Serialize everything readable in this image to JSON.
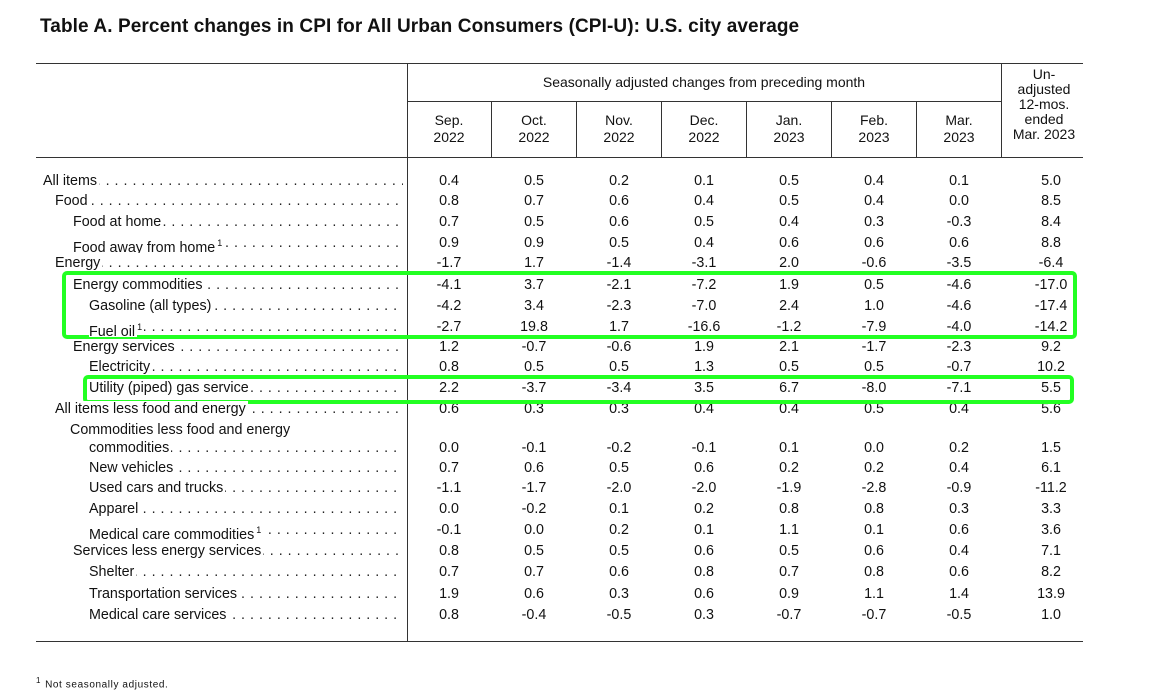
{
  "title": "Table A. Percent changes in CPI for All Urban Consumers (CPI-U): U.S. city average",
  "header": {
    "group_label": "Seasonally adjusted changes from preceding month",
    "unadjusted_label": [
      "Un-",
      "adjusted",
      "12-mos.",
      "ended",
      "Mar. 2023"
    ],
    "months": [
      {
        "l1": "Sep.",
        "l2": "2022"
      },
      {
        "l1": "Oct.",
        "l2": "2022"
      },
      {
        "l1": "Nov.",
        "l2": "2022"
      },
      {
        "l1": "Dec.",
        "l2": "2022"
      },
      {
        "l1": "Jan.",
        "l2": "2023"
      },
      {
        "l1": "Feb.",
        "l2": "2023"
      },
      {
        "l1": "Mar.",
        "l2": "2023"
      }
    ]
  },
  "rows": [
    {
      "label": "All items",
      "indent": 0,
      "values": [
        "0.4",
        "0.5",
        "0.2",
        "0.1",
        "0.5",
        "0.4",
        "0.1",
        "5.0"
      ]
    },
    {
      "label": "Food",
      "indent": 1,
      "values": [
        "0.8",
        "0.7",
        "0.6",
        "0.4",
        "0.5",
        "0.4",
        "0.0",
        "8.5"
      ]
    },
    {
      "label": "Food at home",
      "indent": 2,
      "values": [
        "0.7",
        "0.5",
        "0.6",
        "0.5",
        "0.4",
        "0.3",
        "-0.3",
        "8.4"
      ]
    },
    {
      "label": "Food away from home",
      "sup": "1",
      "indent": 2,
      "values": [
        "0.9",
        "0.9",
        "0.5",
        "0.4",
        "0.6",
        "0.6",
        "0.6",
        "8.8"
      ]
    },
    {
      "label": "Energy",
      "indent": 1,
      "values": [
        "-1.7",
        "1.7",
        "-1.4",
        "-3.1",
        "2.0",
        "-0.6",
        "-3.5",
        "-6.4"
      ]
    },
    {
      "label": "Energy commodities",
      "indent": 2,
      "values": [
        "-4.1",
        "3.7",
        "-2.1",
        "-7.2",
        "1.9",
        "0.5",
        "-4.6",
        "-17.0"
      ]
    },
    {
      "label": "Gasoline (all types)",
      "indent": 3,
      "values": [
        "-4.2",
        "3.4",
        "-2.3",
        "-7.0",
        "2.4",
        "1.0",
        "-4.6",
        "-17.4"
      ]
    },
    {
      "label": "Fuel oil",
      "sup": "1",
      "indent": 3,
      "values": [
        "-2.7",
        "19.8",
        "1.7",
        "-16.6",
        "-1.2",
        "-7.9",
        "-4.0",
        "-14.2"
      ]
    },
    {
      "label": "Energy services",
      "indent": 2,
      "values": [
        "1.2",
        "-0.7",
        "-0.6",
        "1.9",
        "2.1",
        "-1.7",
        "-2.3",
        "9.2"
      ]
    },
    {
      "label": "Electricity",
      "indent": 3,
      "values": [
        "0.8",
        "0.5",
        "0.5",
        "1.3",
        "0.5",
        "0.5",
        "-0.7",
        "10.2"
      ]
    },
    {
      "label": "Utility (piped) gas service",
      "indent": 3,
      "values": [
        "2.2",
        "-3.7",
        "-3.4",
        "3.5",
        "6.7",
        "-8.0",
        "-7.1",
        "5.5"
      ]
    },
    {
      "label": "All items less food and energy",
      "indent": 1,
      "values": [
        "0.6",
        "0.3",
        "0.3",
        "0.4",
        "0.4",
        "0.5",
        "0.4",
        "5.6"
      ]
    },
    {
      "label": "commodities",
      "indent": 3,
      "values": [
        "0.0",
        "-0.1",
        "-0.2",
        "-0.1",
        "0.1",
        "0.0",
        "0.2",
        "1.5"
      ]
    },
    {
      "label": "New vehicles",
      "indent": 3,
      "values": [
        "0.7",
        "0.6",
        "0.5",
        "0.6",
        "0.2",
        "0.2",
        "0.4",
        "6.1"
      ]
    },
    {
      "label": "Used cars and trucks",
      "indent": 3,
      "values": [
        "-1.1",
        "-1.7",
        "-2.0",
        "-2.0",
        "-1.9",
        "-2.8",
        "-0.9",
        "-11.2"
      ]
    },
    {
      "label": "Apparel",
      "indent": 3,
      "values": [
        "0.0",
        "-0.2",
        "0.1",
        "0.2",
        "0.8",
        "0.8",
        "0.3",
        "3.3"
      ]
    },
    {
      "label": "Medical care commodities",
      "sup": "1",
      "indent": 3,
      "values": [
        "-0.1",
        "0.0",
        "0.2",
        "0.1",
        "1.1",
        "0.1",
        "0.6",
        "3.6"
      ]
    },
    {
      "label": "Services less energy services",
      "indent": 2,
      "values": [
        "0.8",
        "0.5",
        "0.5",
        "0.6",
        "0.5",
        "0.6",
        "0.4",
        "7.1"
      ]
    },
    {
      "label": "Shelter",
      "indent": 3,
      "values": [
        "0.7",
        "0.7",
        "0.6",
        "0.8",
        "0.7",
        "0.8",
        "0.6",
        "8.2"
      ]
    },
    {
      "label": "Transportation services",
      "indent": 3,
      "values": [
        "1.9",
        "0.6",
        "0.3",
        "0.6",
        "0.9",
        "1.1",
        "1.4",
        "13.9"
      ]
    },
    {
      "label": "Medical care services",
      "indent": 3,
      "values": [
        "0.8",
        "-0.4",
        "-0.5",
        "0.3",
        "-0.7",
        "-0.7",
        "-0.5",
        "1.0"
      ]
    }
  ],
  "group_header": "Commodities less food and energy",
  "footnote": {
    "mark": "1",
    "text": "Not seasonally adjusted."
  },
  "highlight_color": "#22ff22"
}
